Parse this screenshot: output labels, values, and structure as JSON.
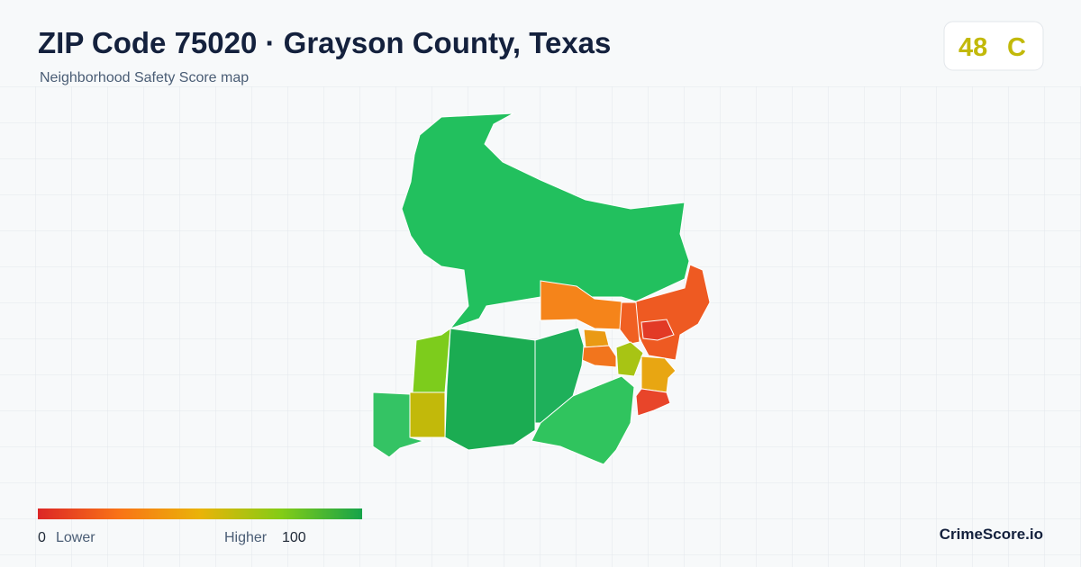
{
  "header": {
    "title": "ZIP Code 75020 · Grayson County, Texas",
    "subtitle": "Neighborhood Safety Score map"
  },
  "score": {
    "value": "48",
    "grade": "C"
  },
  "legend": {
    "min": "0",
    "min_label": "Lower",
    "max_label": "Higher",
    "max": "100"
  },
  "brand": "CrimeScore.io"
}
